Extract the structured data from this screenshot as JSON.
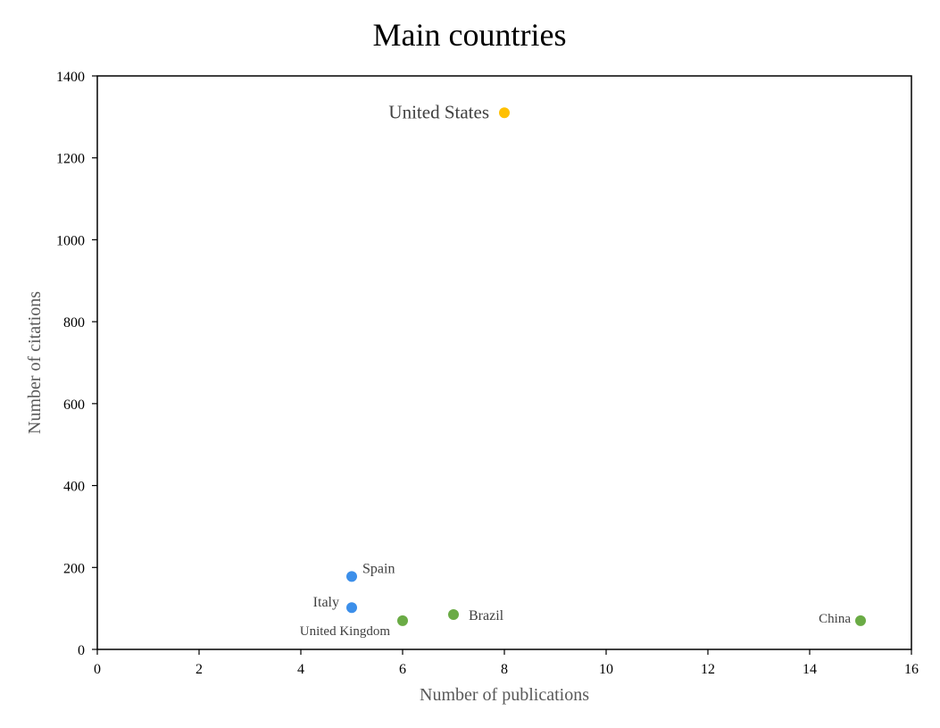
{
  "chart_data": {
    "type": "scatter",
    "title": "Main countries",
    "xlabel": "Number of publications",
    "ylabel": "Number of citations",
    "xlim": [
      0,
      16
    ],
    "ylim": [
      0,
      1400
    ],
    "x_ticks": [
      "0",
      "2",
      "4",
      "6",
      "8",
      "10",
      "12",
      "14",
      "16"
    ],
    "y_ticks": [
      "0",
      "200",
      "400",
      "600",
      "800",
      "1000",
      "1200",
      "1400"
    ],
    "grid": false,
    "legend": "none",
    "points": [
      {
        "label": "United States",
        "x": 8,
        "y": 1310,
        "color": "#FFC000"
      },
      {
        "label": "Spain",
        "x": 5,
        "y": 178,
        "color": "#3C8FEA"
      },
      {
        "label": "Italy",
        "x": 5,
        "y": 102,
        "color": "#3C8FEA"
      },
      {
        "label": "United Kingdom",
        "x": 6,
        "y": 70,
        "color": "#6AAB45"
      },
      {
        "label": "Brazil",
        "x": 7,
        "y": 85,
        "color": "#6AAB45"
      },
      {
        "label": "China",
        "x": 15,
        "y": 70,
        "color": "#6AAB45"
      }
    ]
  }
}
